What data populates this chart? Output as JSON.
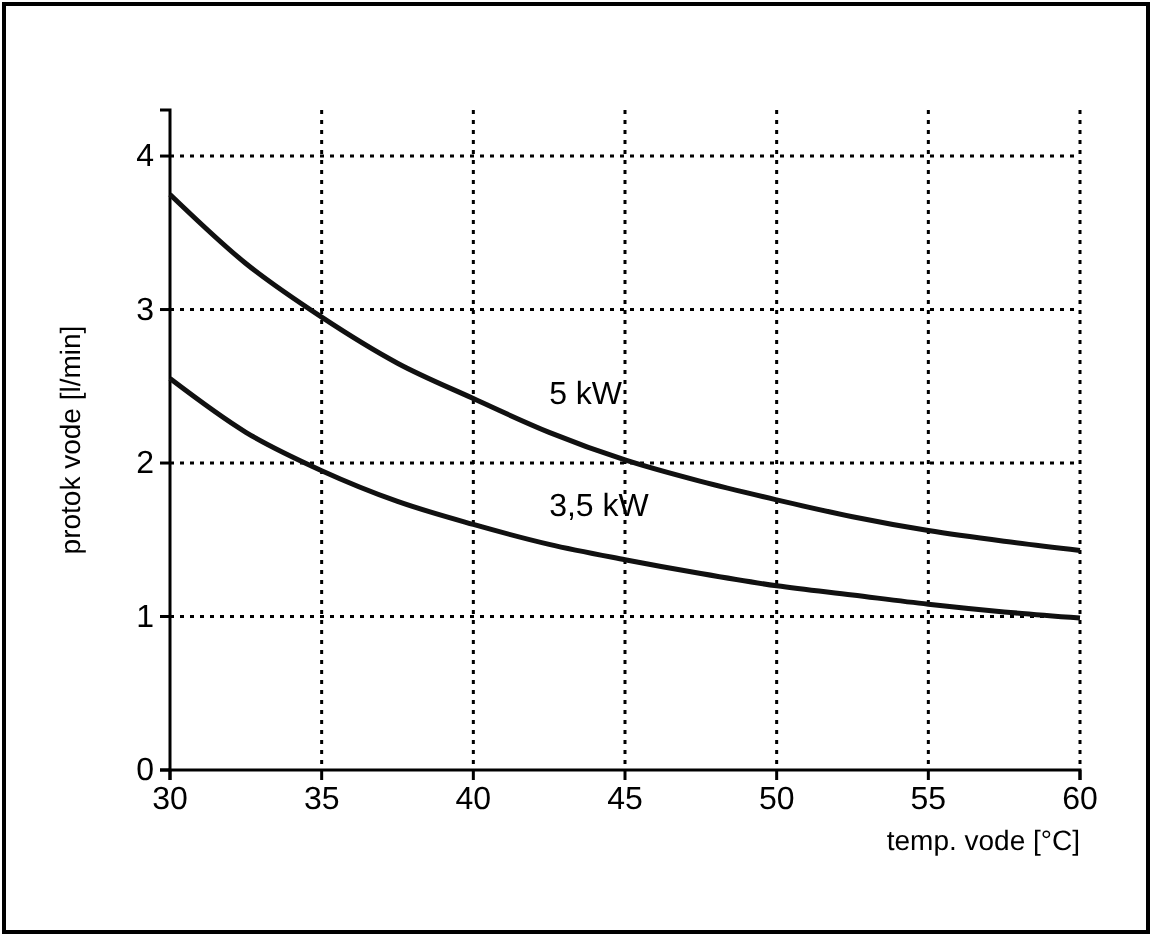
{
  "chart_data": {
    "type": "line",
    "xlabel": "temp. vode   [°C]",
    "ylabel": "protok vode   [l/min]",
    "x": [
      30,
      32.5,
      35,
      37.5,
      40,
      42.5,
      45,
      47.5,
      50,
      52.5,
      55,
      57.5,
      60
    ],
    "series": [
      {
        "name": "5 kW",
        "color": "#111111",
        "values": [
          3.75,
          3.3,
          2.95,
          2.65,
          2.42,
          2.2,
          2.02,
          1.88,
          1.76,
          1.65,
          1.56,
          1.49,
          1.43
        ]
      },
      {
        "name": "3,5 kW",
        "color": "#111111",
        "values": [
          2.55,
          2.2,
          1.95,
          1.75,
          1.6,
          1.47,
          1.37,
          1.28,
          1.2,
          1.14,
          1.08,
          1.03,
          0.99
        ]
      }
    ],
    "xlim": [
      30,
      60
    ],
    "ylim": [
      0,
      4.3
    ],
    "xticks": [
      30,
      35,
      40,
      45,
      50,
      55,
      60
    ],
    "yticks": [
      0,
      1,
      2,
      3,
      4
    ],
    "grid": true,
    "marker": "none",
    "line_style": "solid"
  }
}
